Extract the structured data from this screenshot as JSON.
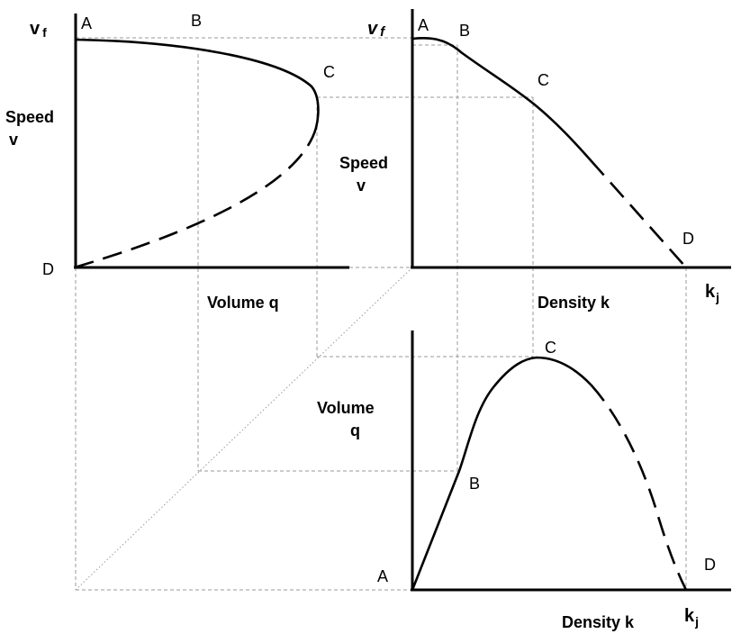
{
  "speed_volume": {
    "y_label_1": "Speed",
    "y_label_2": "v",
    "x_label": "Volume q",
    "top_symbol": "v",
    "top_symbol_sub": "f",
    "points": {
      "A": "A",
      "B": "B",
      "C": "C",
      "D": "D"
    }
  },
  "speed_density": {
    "y_label_1": "Speed",
    "y_label_2": "v",
    "x_label": "Density k",
    "top_symbol": "v",
    "top_symbol_sub": "f",
    "jam_symbol": "k",
    "jam_symbol_sub": "j",
    "points": {
      "A": "A",
      "B": "B",
      "C": "C",
      "D": "D"
    }
  },
  "volume_density": {
    "y_label_1": "Volume",
    "y_label_2": "q",
    "x_label": "Density k",
    "jam_symbol": "k",
    "jam_symbol_sub": "j",
    "points": {
      "A": "A",
      "B": "B",
      "C": "C",
      "D": "D"
    }
  },
  "colors": {
    "axis": "#000000",
    "guide": "#9a9a9a",
    "background": "#ffffff"
  }
}
